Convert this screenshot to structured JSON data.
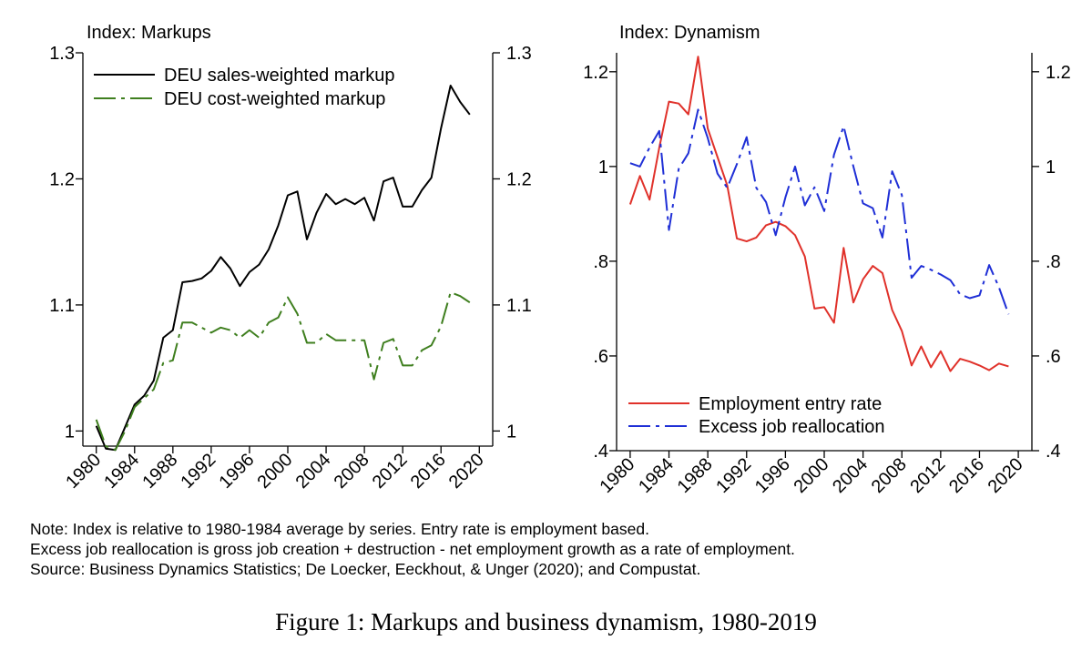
{
  "chart_data": [
    {
      "type": "line",
      "title": "Index: Markups",
      "xlabel": "",
      "ylabel": "",
      "xlim": [
        1978.6,
        2021.4
      ],
      "ylim": [
        0.988,
        1.3
      ],
      "x_ticks": [
        "1980",
        "1984",
        "1988",
        "1992",
        "1996",
        "2000",
        "2004",
        "2008",
        "2012",
        "2016",
        "2020"
      ],
      "y_ticks": [
        "1",
        "1.1",
        "1.2",
        "1.3"
      ],
      "x": [
        1980,
        1981,
        1982,
        1983,
        1984,
        1985,
        1986,
        1987,
        1988,
        1989,
        1990,
        1991,
        1992,
        1993,
        1994,
        1995,
        1996,
        1997,
        1998,
        1999,
        2000,
        2001,
        2002,
        2003,
        2004,
        2005,
        2006,
        2007,
        2008,
        2009,
        2010,
        2011,
        2012,
        2013,
        2014,
        2015,
        2016,
        2017,
        2018,
        2019
      ],
      "series": [
        {
          "name": "DEU sales-weighted markup",
          "color": "#000000",
          "dash": "solid",
          "values": [
            1.004,
            0.986,
            0.985,
            1.003,
            1.021,
            1.028,
            1.04,
            1.074,
            1.08,
            1.118,
            1.119,
            1.121,
            1.127,
            1.138,
            1.129,
            1.115,
            1.126,
            1.132,
            1.144,
            1.163,
            1.187,
            1.19,
            1.152,
            1.173,
            1.188,
            1.18,
            1.184,
            1.18,
            1.185,
            1.167,
            1.198,
            1.201,
            1.178,
            1.178,
            1.191,
            1.201,
            1.24,
            1.274,
            1.261,
            1.251
          ]
        },
        {
          "name": "DEU cost-weighted markup",
          "color": "#3f7f1f",
          "dash": "dashed",
          "values": [
            1.009,
            0.988,
            0.985,
            1.0,
            1.019,
            1.026,
            1.033,
            1.054,
            1.056,
            1.086,
            1.086,
            1.082,
            1.078,
            1.082,
            1.08,
            1.074,
            1.08,
            1.074,
            1.086,
            1.09,
            1.106,
            1.093,
            1.07,
            1.07,
            1.077,
            1.072,
            1.072,
            1.072,
            1.072,
            1.041,
            1.07,
            1.073,
            1.052,
            1.052,
            1.064,
            1.068,
            1.083,
            1.11,
            1.107,
            1.102
          ]
        }
      ],
      "legend": "top-left"
    },
    {
      "type": "line",
      "title": "Index: Dynamism",
      "xlabel": "",
      "ylabel": "",
      "xlim": [
        1978.6,
        2021.4
      ],
      "ylim": [
        0.4,
        1.24
      ],
      "x_ticks": [
        "1980",
        "1984",
        "1988",
        "1992",
        "1996",
        "2000",
        "2004",
        "2008",
        "2012",
        "2016",
        "2020"
      ],
      "y_ticks": [
        ".4",
        ".6",
        ".8",
        "1",
        "1.2"
      ],
      "x": [
        1980,
        1981,
        1982,
        1983,
        1984,
        1985,
        1986,
        1987,
        1988,
        1989,
        1990,
        1991,
        1992,
        1993,
        1994,
        1995,
        1996,
        1997,
        1998,
        1999,
        2000,
        2001,
        2002,
        2003,
        2004,
        2005,
        2006,
        2007,
        2008,
        2009,
        2010,
        2011,
        2012,
        2013,
        2014,
        2015,
        2016,
        2017,
        2018,
        2019
      ],
      "series": [
        {
          "name": "Employment entry rate",
          "color": "#e0312a",
          "dash": "solid",
          "values": [
            0.92,
            0.98,
            0.93,
            1.04,
            1.137,
            1.133,
            1.11,
            1.232,
            1.08,
            1.02,
            0.96,
            0.848,
            0.842,
            0.85,
            0.876,
            0.883,
            0.874,
            0.855,
            0.81,
            0.7,
            0.703,
            0.67,
            0.828,
            0.713,
            0.762,
            0.79,
            0.775,
            0.697,
            0.653,
            0.58,
            0.62,
            0.576,
            0.61,
            0.568,
            0.594,
            0.588,
            0.58,
            0.57,
            0.584,
            0.578
          ]
        },
        {
          "name": "Excess job reallocation",
          "color": "#1f2fd6",
          "dash": "dashed",
          "values": [
            1.007,
            1.0,
            1.04,
            1.075,
            0.866,
            0.995,
            1.028,
            1.12,
            1.06,
            0.985,
            0.955,
            1.005,
            1.062,
            0.955,
            0.925,
            0.855,
            0.935,
            1.0,
            0.918,
            0.956,
            0.906,
            1.025,
            1.085,
            1.0,
            0.922,
            0.912,
            0.85,
            0.99,
            0.94,
            0.765,
            0.79,
            0.782,
            0.772,
            0.76,
            0.73,
            0.722,
            0.728,
            0.792,
            0.745,
            0.688
          ]
        }
      ],
      "legend": "bottom-left"
    }
  ],
  "note": {
    "line1": "Note: Index is relative to 1980-1984 average by series. Entry rate is employment based.",
    "line2": "Excess job reallocation is gross job creation + destruction - net employment growth as a rate of employment.",
    "line3": "Source: Business Dynamics Statistics; De Loecker, Eeckhout, & Unger (2020); and Compustat."
  },
  "caption": "Figure 1: Markups and business dynamism, 1980-2019"
}
